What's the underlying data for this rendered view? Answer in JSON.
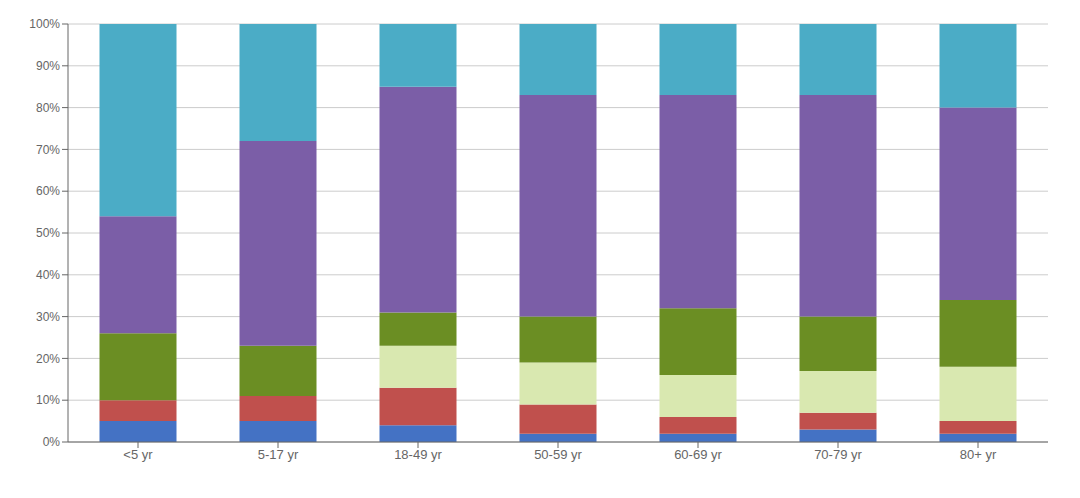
{
  "chart_data": {
    "type": "bar",
    "stacked": true,
    "grid": true,
    "categories": [
      "<5 yr",
      "5-17 yr",
      "18-49 yr",
      "50-59 yr",
      "60-69 yr",
      "70-79 yr",
      "80+ yr"
    ],
    "series": [
      {
        "color": "#4472C4",
        "values": [
          5.0,
          5.0,
          4.0,
          2.0,
          2.0,
          3.0,
          2.0
        ]
      },
      {
        "color": "#C0504D",
        "values": [
          5.0,
          6.0,
          9.0,
          7.0,
          4.0,
          4.0,
          3.0
        ]
      },
      {
        "color": "#D9E8B0",
        "values": [
          0.0,
          0.0,
          10.0,
          10.0,
          10.0,
          10.0,
          13.0
        ]
      },
      {
        "color": "#6B8E23",
        "values": [
          16.0,
          12.0,
          8.0,
          11.0,
          16.0,
          13.0,
          16.0
        ]
      },
      {
        "color": "#7B5EA7",
        "values": [
          28.0,
          49.0,
          54.0,
          53.0,
          51.0,
          53.0,
          46.0
        ]
      },
      {
        "color": "#4BACC6",
        "values": [
          46.0,
          28.0,
          15.0,
          17.0,
          17.0,
          17.0,
          20.0
        ]
      }
    ],
    "ylim": [
      0,
      100
    ],
    "yticks": [
      {
        "value": 0,
        "label": "0%"
      },
      {
        "value": 10,
        "label": "10%"
      },
      {
        "value": 20,
        "label": "20%"
      },
      {
        "value": 30,
        "label": "30%"
      },
      {
        "value": 40,
        "label": "40%"
      },
      {
        "value": 50,
        "label": "50%"
      },
      {
        "value": 60,
        "label": "60%"
      },
      {
        "value": 70,
        "label": "70%"
      },
      {
        "value": 80,
        "label": "80%"
      },
      {
        "value": 90,
        "label": "90%"
      },
      {
        "value": 100,
        "label": "100%"
      }
    ]
  }
}
